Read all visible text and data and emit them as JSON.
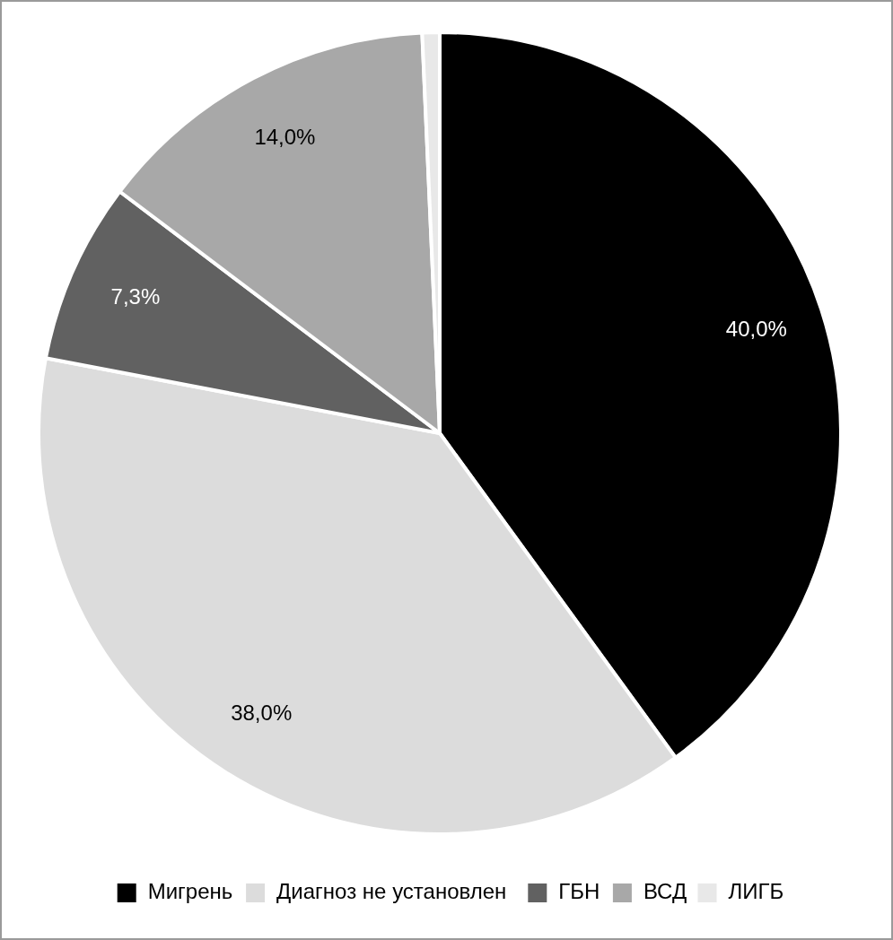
{
  "chart_data": {
    "type": "pie",
    "categories": [
      "Мигрень",
      "Диагноз не установлен",
      "ГБН",
      "ВСД",
      "ЛИГБ"
    ],
    "values": [
      40.0,
      38.0,
      7.3,
      14.0,
      0.7
    ],
    "colors": [
      "#000000",
      "#dcdcdc",
      "#616161",
      "#a8a8a8",
      "#e8e8e8"
    ],
    "value_labels": [
      "40,0%",
      "38,0%",
      "7,3%",
      "14,0%",
      null
    ],
    "legend": "bottom"
  }
}
